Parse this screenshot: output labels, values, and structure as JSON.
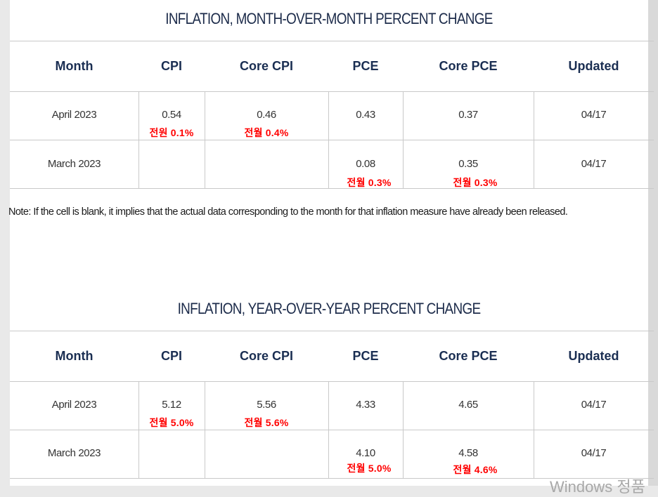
{
  "mom": {
    "title": "INFLATION, MONTH-OVER-MONTH PERCENT CHANGE",
    "headers": [
      "Month",
      "CPI",
      "Core CPI",
      "PCE",
      "Core PCE",
      "Updated"
    ],
    "rows": [
      {
        "month": "April 2023",
        "cpi": "0.54",
        "core_cpi": "0.46",
        "pce": "0.43",
        "core_pce": "0.37",
        "updated": "04/17",
        "cpi_note": "전원 0.1%",
        "core_cpi_note": "전월 0.4%",
        "pce_note": "",
        "core_pce_note": ""
      },
      {
        "month": "March 2023",
        "cpi": "",
        "core_cpi": "",
        "pce": "0.08",
        "core_pce": "0.35",
        "updated": "04/17",
        "cpi_note": "",
        "core_cpi_note": "",
        "pce_note": "전월 0.3%",
        "core_pce_note": "전월 0.3%"
      }
    ]
  },
  "note": "Note: If the cell is blank, it implies that the actual data corresponding to the month for that inflation measure have already been released.",
  "yoy": {
    "title": "INFLATION, YEAR-OVER-YEAR PERCENT CHANGE",
    "headers": [
      "Month",
      "CPI",
      "Core CPI",
      "PCE",
      "Core PCE",
      "Updated"
    ],
    "rows": [
      {
        "month": "April 2023",
        "cpi": "5.12",
        "core_cpi": "5.56",
        "pce": "4.33",
        "core_pce": "4.65",
        "updated": "04/17",
        "cpi_note": "전월 5.0%",
        "core_cpi_note": "전월 5.6%",
        "pce_note": "",
        "core_pce_note": ""
      },
      {
        "month": "March 2023",
        "cpi": "",
        "core_cpi": "",
        "pce": "4.10",
        "core_pce": "4.58",
        "updated": "04/17",
        "cpi_note": "",
        "core_cpi_note": "",
        "pce_note": "전월 5.0%",
        "core_pce_note": "전월 4.6%"
      }
    ]
  },
  "watermark": "Windows 정품",
  "colors": {
    "header_text": "#1a2e52",
    "note_red": "#ff0000",
    "grid": "#c9c9c9"
  }
}
